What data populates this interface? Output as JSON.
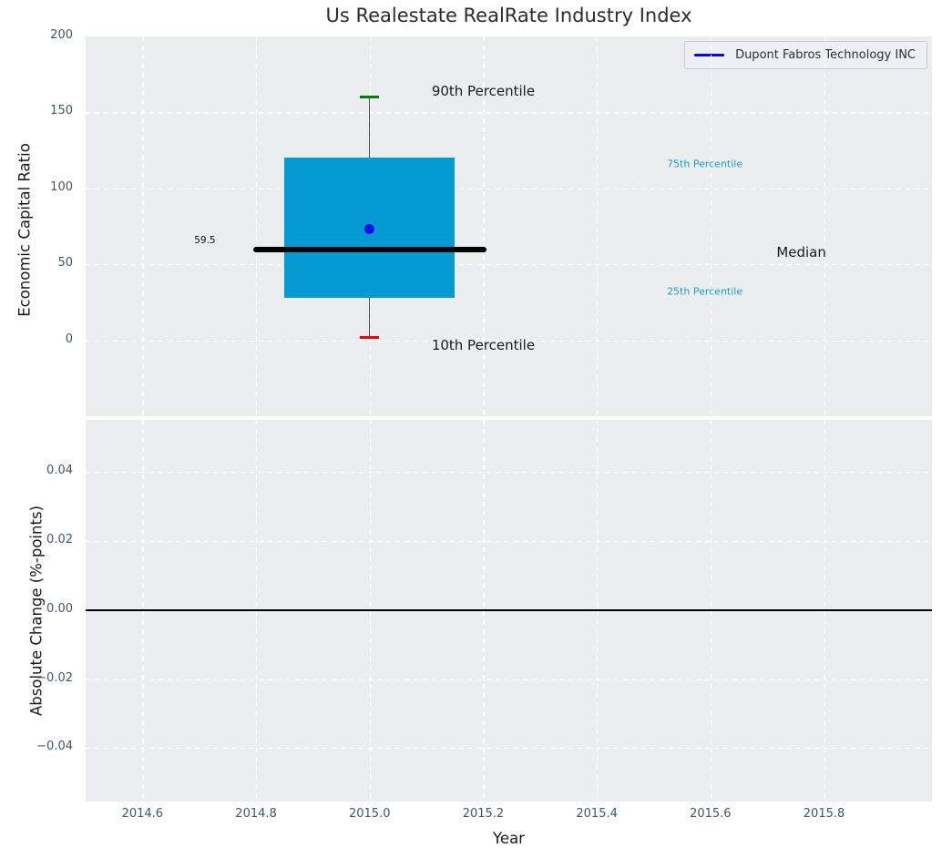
{
  "title": "Us Realestate RealRate Industry Index",
  "legend": {
    "label": "Dupont Fabros Technology INC",
    "line_color": "#0505ee"
  },
  "colors": {
    "figure_bg": "#ffffff",
    "axes_bg": "#eaeeef",
    "grid": "#ffffff",
    "tick_label": "#41556b",
    "text": "#1a1a1a",
    "box_fill": "#049ad3",
    "median_line": "#000000",
    "p90_cap": "#007f00",
    "p10_cap": "#f00000",
    "company_dot": "#1111ee",
    "whisker": "#4a4a4a",
    "percentile_label": "#1f9ccb"
  },
  "chart_data": [
    {
      "type": "boxplot",
      "title": "Us Realestate RealRate Industry Index",
      "ylabel": "Economic Capital Ratio",
      "xlim": [
        2014.5,
        2015.99
      ],
      "ylim": [
        -50,
        200
      ],
      "grid": true,
      "legend_position": "upper right",
      "yticks": {
        "values": [
          0,
          50,
          100,
          150,
          200
        ],
        "labels": [
          "0",
          "50",
          "100",
          "150",
          "200"
        ]
      },
      "xticks": {
        "values": [
          2014.6,
          2014.8,
          2015.0,
          2015.2,
          2015.4,
          2015.6,
          2015.8
        ]
      },
      "series": [
        {
          "name": "Dupont Fabros Technology INC",
          "x": 2015.0,
          "p10": 2,
          "q1": 28,
          "median": 59.5,
          "q3": 120,
          "p90": 160,
          "company_value": 73,
          "box_halfwidth": 0.15,
          "median_halfwidth": 0.205,
          "cap_halfwidth": 0.017
        }
      ],
      "annotations": [
        {
          "text": "90th Percentile",
          "x": 2015.2,
          "y": 164,
          "fontsize": 15,
          "color": "#1a1a1a"
        },
        {
          "text": "10th Percentile",
          "x": 2015.2,
          "y": -3,
          "fontsize": 15,
          "color": "#1a1a1a"
        },
        {
          "text": "Median",
          "x": 2015.76,
          "y": 58,
          "fontsize": 15,
          "color": "#1a1a1a"
        },
        {
          "text": "75th Percentile",
          "x": 2015.59,
          "y": 116,
          "fontsize": 11,
          "color": "#1f9ccb"
        },
        {
          "text": "25th Percentile",
          "x": 2015.59,
          "y": 32,
          "fontsize": 11,
          "color": "#1f9ccb"
        },
        {
          "text": "59.5",
          "x": 2014.71,
          "y": 66,
          "fontsize": 10.5,
          "color": "#111111"
        }
      ]
    },
    {
      "type": "line",
      "ylabel": "Absolute Change (%-points)",
      "xlabel": "Year",
      "xlim": [
        2014.5,
        2015.99
      ],
      "ylim": [
        -0.0555,
        0.0551
      ],
      "grid": true,
      "zero_line": 0.0,
      "yticks": {
        "values": [
          0.04,
          0.02,
          0.0,
          -0.02,
          -0.04
        ],
        "labels": [
          "0.04",
          "0.02",
          "0.00",
          "−0.02",
          "−0.04"
        ]
      },
      "xticks": {
        "values": [
          2014.6,
          2014.8,
          2015.0,
          2015.2,
          2015.4,
          2015.6,
          2015.8
        ],
        "labels": [
          "2014.6",
          "2014.8",
          "2015.0",
          "2015.2",
          "2015.4",
          "2015.6",
          "2015.8"
        ]
      }
    }
  ]
}
